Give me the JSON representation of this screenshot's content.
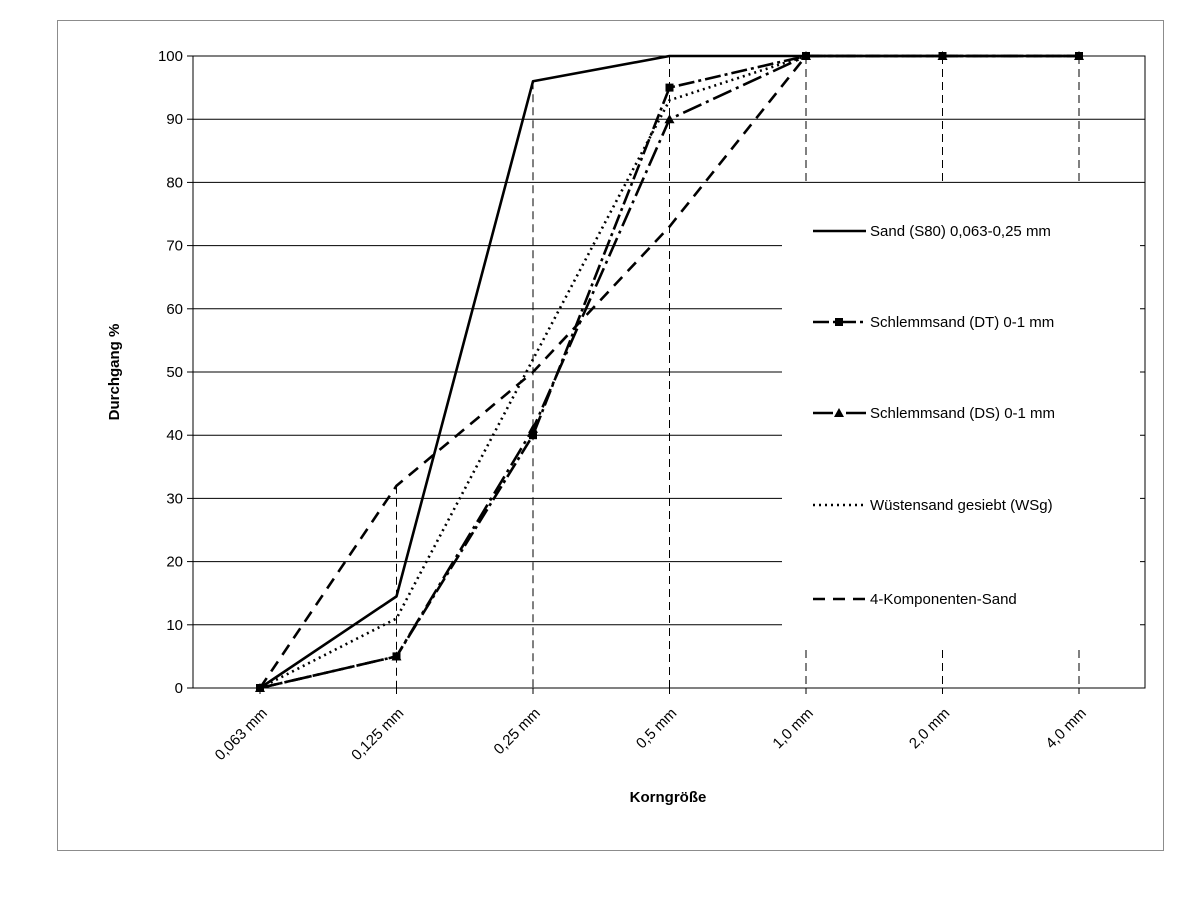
{
  "chart_data": {
    "type": "line",
    "title": "",
    "xlabel": "Korngröße",
    "ylabel": "Durchgang %",
    "categories": [
      "0,063 mm",
      "0,125 mm",
      "0,25 mm",
      "0,5 mm",
      "1,0 mm",
      "2,0 mm",
      "4,0 mm"
    ],
    "ylim": [
      0,
      100
    ],
    "yticks": [
      "0",
      "10",
      "20",
      "30",
      "40",
      "50",
      "60",
      "70",
      "80",
      "90",
      "100"
    ],
    "grid": "horizontal",
    "legend_position": "right",
    "series": [
      {
        "name": "Sand (S80) 0,063-0,25 mm",
        "style": "solid",
        "marker": "none",
        "values": [
          0,
          14.5,
          96,
          100,
          100,
          100,
          100
        ]
      },
      {
        "name": "Schlemmsand (DT) 0-1 mm",
        "style": "dash-dot",
        "marker": "square",
        "values": [
          0,
          5,
          40,
          95,
          100,
          100,
          100
        ]
      },
      {
        "name": "Schlemmsand (DS) 0-1 mm",
        "style": "dash-dot-long",
        "marker": "triangle",
        "values": [
          0,
          5,
          41,
          90,
          100,
          100,
          100
        ]
      },
      {
        "name": "Wüstensand gesiebt (WSg)",
        "style": "dotted",
        "marker": "none",
        "values": [
          0,
          11,
          52,
          93,
          100,
          100,
          100
        ]
      },
      {
        "name": "4-Komponenten-Sand",
        "style": "dashed",
        "marker": "none",
        "values": [
          0,
          32,
          50,
          73,
          100,
          100,
          100
        ]
      }
    ]
  }
}
